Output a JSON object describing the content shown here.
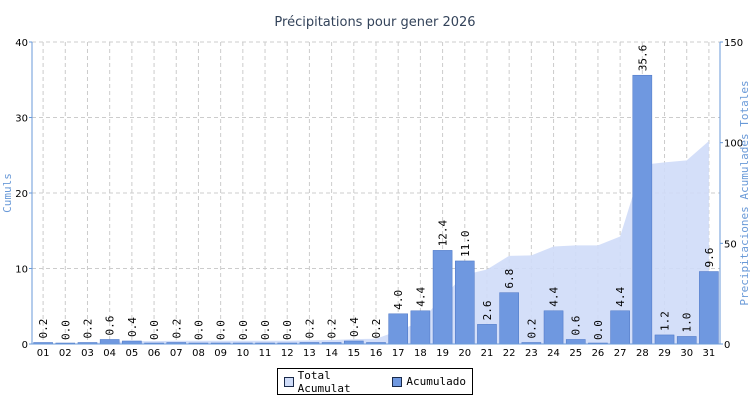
{
  "chart_data": {
    "type": "bar",
    "title": "Précipitations pour gener 2026",
    "ylabel_left": "Cumuls",
    "ylabel_right": "Precipitaciones Acumulades Totales",
    "categories": [
      "01",
      "02",
      "03",
      "04",
      "05",
      "06",
      "07",
      "08",
      "09",
      "10",
      "11",
      "12",
      "13",
      "14",
      "15",
      "16",
      "17",
      "18",
      "19",
      "20",
      "21",
      "22",
      "23",
      "24",
      "25",
      "26",
      "27",
      "28",
      "29",
      "30",
      "31"
    ],
    "ylim_left": [
      0,
      40
    ],
    "yticks_left": [
      0,
      10,
      20,
      30,
      40
    ],
    "ylim_right": [
      0,
      150
    ],
    "yticks_right": [
      0,
      50,
      100,
      150
    ],
    "grid": true,
    "legend_position": "bottom-center",
    "series": [
      {
        "name": "Acumulado",
        "axis": "left",
        "kind": "bar",
        "color": "#6f98e0",
        "values": [
          0.2,
          0.0,
          0.2,
          0.6,
          0.4,
          0.0,
          0.2,
          0.0,
          0.0,
          0.0,
          0.0,
          0.0,
          0.2,
          0.2,
          0.4,
          0.2,
          4.0,
          4.4,
          12.4,
          11.0,
          2.6,
          6.8,
          0.2,
          4.4,
          0.6,
          0.0,
          4.4,
          35.6,
          1.2,
          1.0,
          9.6
        ],
        "labels": [
          "0.2",
          "0.0",
          "0.2",
          "0.6",
          "0.4",
          "0.0",
          "0.2",
          "0.0",
          "0.0",
          "0.0",
          "0.0",
          "0.0",
          "0.2",
          "0.2",
          "0.4",
          "0.2",
          "4.0",
          "4.4",
          "12.4",
          "11.0",
          "2.6",
          "6.8",
          "0.2",
          "4.4",
          "0.6",
          "0.0",
          "4.4",
          "35.6",
          "1.2",
          "1.0",
          "9.6"
        ]
      },
      {
        "name": "Total Acumulat",
        "axis": "right",
        "kind": "area",
        "color": "#cfdcf8",
        "values": [
          0.2,
          0.2,
          0.4,
          1.0,
          1.4,
          1.4,
          1.6,
          1.6,
          1.6,
          1.6,
          1.6,
          1.6,
          1.8,
          2.0,
          2.4,
          2.6,
          6.6,
          11.0,
          23.4,
          34.4,
          37.0,
          43.8,
          44.0,
          48.4,
          49.0,
          49.0,
          53.4,
          89.0,
          90.2,
          91.2,
          100.8
        ]
      }
    ]
  },
  "legend": {
    "items": [
      {
        "label": "Total Acumulat",
        "color": "#cfdcf8"
      },
      {
        "label": "Acumulado",
        "color": "#6f98e0"
      }
    ]
  }
}
